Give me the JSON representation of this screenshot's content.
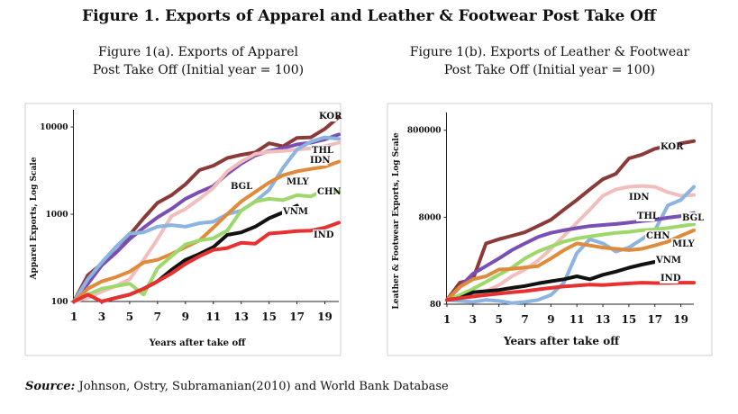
{
  "page": {
    "title": "Figure 1. Exports of Apparel and Leather & Footwear Post Take Off",
    "source_label": "Source:",
    "source_text": " Johnson, Ostry, Subramanian(2010) and World Bank Database"
  },
  "chart_data": [
    {
      "type": "line",
      "title_line1": "Figure 1(a). Exports of Apparel",
      "title_line2": "Post Take Off (Initial year = 100)",
      "xlabel": "Years after take off",
      "ylabel": "Apparel Exports, Log Scale",
      "log_scale": true,
      "ylim": [
        100,
        13000
      ],
      "yticks": [
        100,
        1000,
        10000
      ],
      "yticklabels": [
        "100",
        "1000",
        "10000"
      ],
      "xlim": [
        1,
        20
      ],
      "xticks": [
        1,
        3,
        5,
        7,
        9,
        11,
        13,
        15,
        17,
        19
      ],
      "grid": false,
      "series": [
        {
          "name": "KOR",
          "color": "#8B3A3A",
          "x": [
            1,
            2,
            3,
            4,
            5,
            6,
            7,
            8,
            9,
            10,
            11,
            12,
            13,
            14,
            15,
            16,
            17,
            18,
            19,
            20
          ],
          "values": [
            100,
            200,
            270,
            420,
            580,
            900,
            1350,
            1650,
            2200,
            3200,
            3600,
            4400,
            4800,
            5100,
            6500,
            6000,
            7500,
            7600,
            9500,
            13000
          ]
        },
        {
          "name": "THL",
          "color": "#7A4FB5",
          "x": [
            1,
            2,
            3,
            4,
            5,
            6,
            7,
            8,
            9,
            10,
            11,
            12,
            13,
            14,
            15,
            16,
            17,
            18,
            19,
            20
          ],
          "values": [
            100,
            160,
            260,
            360,
            520,
            700,
            920,
            1150,
            1500,
            1800,
            2100,
            2900,
            3800,
            4700,
            5300,
            5700,
            6300,
            6600,
            7200,
            8200
          ]
        },
        {
          "name": "IDN",
          "color": "#F2BDBD",
          "x": [
            1,
            2,
            3,
            4,
            5,
            6,
            7,
            8,
            9,
            10,
            11,
            12,
            13,
            14,
            15,
            16,
            17,
            18,
            19,
            20
          ],
          "values": [
            100,
            110,
            130,
            150,
            180,
            300,
            520,
            950,
            1150,
            1500,
            2000,
            3100,
            4000,
            4900,
            5200,
            5300,
            5500,
            5700,
            6000,
            6600
          ]
        },
        {
          "name": "BGL",
          "color": "#8CB4E0",
          "x": [
            1,
            2,
            3,
            4,
            5,
            6,
            7,
            8,
            9,
            10,
            11,
            12,
            13,
            14,
            15,
            16,
            17,
            18,
            19,
            20
          ],
          "values": [
            100,
            180,
            280,
            420,
            600,
            620,
            720,
            750,
            720,
            790,
            820,
            1000,
            1100,
            1400,
            1900,
            3400,
            5500,
            6800,
            7600,
            7300
          ]
        },
        {
          "name": "MLY",
          "color": "#E08A3C",
          "x": [
            1,
            2,
            3,
            4,
            5,
            6,
            7,
            8,
            9,
            10,
            11,
            12,
            13,
            14,
            15,
            16,
            17,
            18,
            19,
            20
          ],
          "values": [
            100,
            140,
            170,
            190,
            220,
            280,
            300,
            350,
            420,
            500,
            700,
            1000,
            1400,
            1800,
            2300,
            2800,
            3100,
            3300,
            3500,
            4000
          ]
        },
        {
          "name": "CHN",
          "color": "#9ED86A",
          "x": [
            1,
            2,
            3,
            4,
            5,
            6,
            7,
            8,
            9,
            10,
            11,
            12,
            13,
            14,
            15,
            16,
            17,
            18,
            19,
            20
          ],
          "values": [
            100,
            120,
            140,
            150,
            160,
            120,
            240,
            330,
            450,
            500,
            530,
            650,
            1100,
            1400,
            1500,
            1450,
            1650,
            1600,
            1900,
            1800
          ]
        },
        {
          "name": "VNM",
          "color": "#111111",
          "x": [
            3,
            4,
            5,
            6,
            7,
            8,
            9,
            10,
            11,
            12,
            13,
            14,
            15,
            16,
            17
          ],
          "values": [
            100,
            110,
            120,
            140,
            170,
            230,
            300,
            350,
            420,
            580,
            620,
            720,
            900,
            1050,
            1250
          ]
        },
        {
          "name": "IND",
          "color": "#E83030",
          "x": [
            1,
            2,
            3,
            4,
            5,
            6,
            7,
            8,
            9,
            10,
            11,
            12,
            13,
            14,
            15,
            16,
            17,
            18,
            19,
            20
          ],
          "values": [
            100,
            120,
            100,
            110,
            120,
            140,
            170,
            210,
            270,
            330,
            390,
            410,
            470,
            460,
            600,
            620,
            640,
            650,
            700,
            800
          ]
        }
      ],
      "labels": [
        {
          "text": "KOR",
          "series": "KOR"
        },
        {
          "text": "THL",
          "series": "THL"
        },
        {
          "text": "IDN",
          "series": "IDN"
        },
        {
          "text": "BGL",
          "series": "BGL"
        },
        {
          "text": "MLY",
          "series": "MLY"
        },
        {
          "text": "CHN",
          "series": "CHN"
        },
        {
          "text": "VNM",
          "series": "VNM"
        },
        {
          "text": "IND",
          "series": "IND"
        }
      ]
    },
    {
      "type": "line",
      "title_line1": "Figure 1(b). Exports of Leather & Footwear",
      "title_line2": "Post Take Off (Initial year = 100)",
      "xlabel": "Years after take off",
      "ylabel": "Leather & Footwear Exports, Log Scale",
      "log_scale": true,
      "ylim": [
        80,
        1400000
      ],
      "yticks": [
        80,
        8000,
        800000
      ],
      "yticklabels": [
        "80",
        "8000",
        "800000"
      ],
      "xlim": [
        1,
        20
      ],
      "xticks": [
        1,
        3,
        5,
        7,
        9,
        11,
        13,
        15,
        17,
        19
      ],
      "grid": false,
      "series": [
        {
          "name": "KOR",
          "color": "#8B3A3A",
          "x": [
            1,
            2,
            3,
            4,
            5,
            6,
            7,
            8,
            9,
            10,
            11,
            12,
            13,
            14,
            15,
            16,
            17,
            18,
            19,
            20
          ],
          "values": [
            100,
            250,
            300,
            2000,
            2500,
            3000,
            3600,
            5000,
            7000,
            12000,
            20000,
            35000,
            60000,
            80000,
            180000,
            220000,
            300000,
            350000,
            400000,
            450000
          ]
        },
        {
          "name": "IDN",
          "color": "#F2BDBD",
          "x": [
            1,
            2,
            3,
            4,
            5,
            6,
            7,
            8,
            9,
            10,
            11,
            12,
            13,
            14,
            15,
            16,
            17,
            18,
            19,
            20
          ],
          "values": [
            100,
            120,
            130,
            160,
            220,
            350,
            500,
            800,
            1500,
            3000,
            6000,
            12000,
            25000,
            35000,
            40000,
            42000,
            40000,
            30000,
            25000,
            26000
          ]
        },
        {
          "name": "BGL",
          "color": "#8CB4E0",
          "x": [
            1,
            2,
            3,
            4,
            5,
            6,
            7,
            8,
            9,
            10,
            11,
            12,
            13,
            14,
            15,
            16,
            17,
            18,
            19,
            20
          ],
          "values": [
            100,
            95,
            90,
            100,
            95,
            85,
            90,
            100,
            130,
            250,
            1200,
            2500,
            2000,
            1300,
            1600,
            2500,
            4000,
            15000,
            20000,
            40000
          ]
        },
        {
          "name": "THL",
          "color": "#7A4FB5",
          "x": [
            1,
            2,
            3,
            4,
            5,
            6,
            7,
            8,
            9,
            10,
            11,
            12,
            13,
            14,
            15,
            16,
            17,
            18,
            19,
            20
          ],
          "values": [
            100,
            200,
            400,
            600,
            900,
            1400,
            2000,
            2800,
            3500,
            4000,
            4500,
            5000,
            5300,
            5600,
            6000,
            6500,
            7000,
            7800,
            8500,
            10000
          ]
        },
        {
          "name": "CHN",
          "color": "#9ED86A",
          "x": [
            1,
            2,
            3,
            4,
            5,
            6,
            7,
            8,
            9,
            10,
            11,
            12,
            13,
            14,
            15,
            16,
            17,
            18,
            19,
            20
          ],
          "values": [
            100,
            130,
            180,
            260,
            380,
            550,
            900,
            1300,
            1700,
            2200,
            2600,
            2900,
            3200,
            3500,
            3700,
            4000,
            4200,
            4500,
            5000,
            5500
          ]
        },
        {
          "name": "MLY",
          "color": "#E08A3C",
          "x": [
            1,
            2,
            3,
            4,
            5,
            6,
            7,
            8,
            9,
            10,
            11,
            12,
            13,
            14,
            15,
            16,
            17,
            18,
            19,
            20
          ],
          "values": [
            100,
            200,
            300,
            350,
            500,
            520,
            560,
            600,
            900,
            1400,
            2000,
            1800,
            1600,
            1500,
            1400,
            1500,
            1800,
            2200,
            3000,
            4000
          ]
        },
        {
          "name": "VNM",
          "color": "#111111",
          "x": [
            1,
            2,
            3,
            4,
            5,
            6,
            7,
            8,
            9,
            10,
            11,
            12,
            13,
            14,
            15,
            16,
            17
          ],
          "values": [
            100,
            110,
            150,
            160,
            170,
            190,
            210,
            240,
            270,
            300,
            350,
            300,
            380,
            450,
            550,
            650,
            750
          ]
        },
        {
          "name": "IND",
          "color": "#E83030",
          "x": [
            1,
            2,
            3,
            4,
            5,
            6,
            7,
            8,
            9,
            10,
            11,
            12,
            13,
            14,
            15,
            16,
            17,
            18,
            19,
            20
          ],
          "values": [
            100,
            110,
            120,
            130,
            140,
            150,
            160,
            175,
            190,
            205,
            215,
            225,
            220,
            230,
            240,
            250,
            245,
            245,
            250,
            250
          ]
        }
      ],
      "labels": [
        {
          "text": "KOR",
          "series": "KOR"
        },
        {
          "text": "IDN",
          "series": "IDN"
        },
        {
          "text": "THL",
          "series": "THL"
        },
        {
          "text": "BGL",
          "series": "BGL"
        },
        {
          "text": "CHN",
          "series": "CHN"
        },
        {
          "text": "MLY",
          "series": "MLY"
        },
        {
          "text": "VNM",
          "series": "VNM"
        },
        {
          "text": "IND",
          "series": "IND"
        }
      ]
    }
  ]
}
